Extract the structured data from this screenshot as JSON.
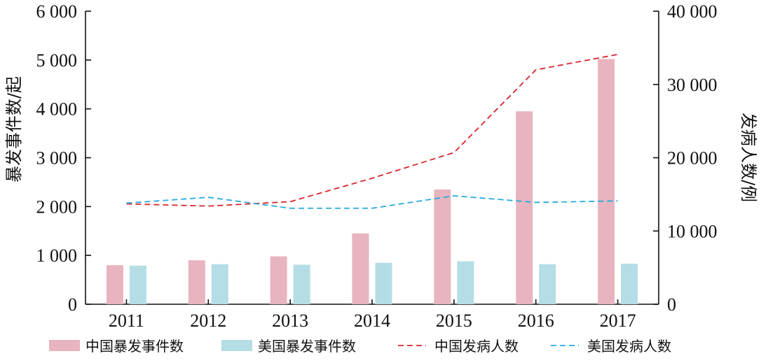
{
  "chart_data": {
    "type": "bar",
    "categories": [
      "2011",
      "2012",
      "2013",
      "2014",
      "2015",
      "2016",
      "2017"
    ],
    "ylabel_left": "暴发事件数/起",
    "ylabel_right": "发病人数/例",
    "ylim_left": [
      0,
      6000
    ],
    "ylim_right": [
      0,
      40000
    ],
    "yticks_left": [
      "0",
      "1 000",
      "2 000",
      "3 000",
      "4 000",
      "5 000",
      "6 000"
    ],
    "yticks_right": [
      "0",
      "10 000",
      "20 000",
      "30 000",
      "40 000"
    ],
    "grid": false,
    "legend_position": "bottom",
    "bar_series": [
      {
        "name": "中国暴发事件数",
        "axis": "left",
        "color": "#e8b4bf",
        "values": [
          800,
          900,
          980,
          1450,
          2350,
          3950,
          5020
        ]
      },
      {
        "name": "美国暴发事件数",
        "axis": "left",
        "color": "#b4dde6",
        "values": [
          790,
          820,
          810,
          850,
          880,
          820,
          830
        ]
      }
    ],
    "line_series": [
      {
        "name": "中国发病人数",
        "axis": "right",
        "color": "#d9262e",
        "dash": "dashed",
        "values": [
          13700,
          13400,
          14000,
          17200,
          20700,
          32000,
          34100
        ]
      },
      {
        "name": "美国发病人数",
        "axis": "right",
        "color": "#26a9e0",
        "dash": "dashed",
        "values": [
          13800,
          14600,
          13100,
          13100,
          14800,
          13900,
          14100
        ]
      }
    ]
  }
}
